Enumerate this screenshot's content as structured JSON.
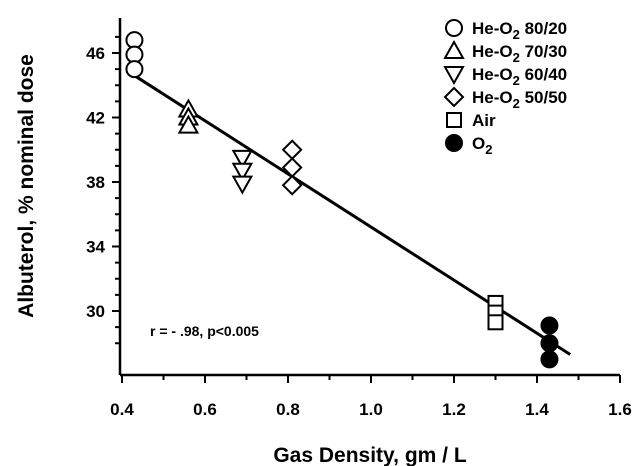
{
  "chart_data": {
    "type": "scatter",
    "xlabel": "Gas Density, gm / L",
    "ylabel": "Albuterol, % nominal dose",
    "xlim": [
      0.4,
      1.6
    ],
    "ylim": [
      27,
      48
    ],
    "xticks": [
      "0.4",
      "0.6",
      "0.8",
      "1.0",
      "1.2",
      "1.4",
      "1.6"
    ],
    "yticks": [
      "46",
      "42",
      "38",
      "34",
      "30"
    ],
    "grid": false,
    "legend_position": "top-right",
    "series": [
      {
        "name": "He-O2 80/20",
        "marker": "open-circle",
        "points": [
          [
            0.43,
            46.8
          ],
          [
            0.43,
            45.9
          ],
          [
            0.43,
            45.0
          ]
        ]
      },
      {
        "name": "He-O2 70/30",
        "marker": "open-triangle-up",
        "points": [
          [
            0.56,
            42.5
          ],
          [
            0.56,
            42.0
          ],
          [
            0.56,
            41.5
          ]
        ]
      },
      {
        "name": "He-O2 60/40",
        "marker": "open-triangle-down",
        "points": [
          [
            0.69,
            39.5
          ],
          [
            0.69,
            38.7
          ],
          [
            0.69,
            37.9
          ]
        ]
      },
      {
        "name": "He-O2 50/50",
        "marker": "open-diamond",
        "points": [
          [
            0.81,
            40.0
          ],
          [
            0.81,
            38.9
          ],
          [
            0.81,
            37.8
          ]
        ]
      },
      {
        "name": "Air",
        "marker": "open-square",
        "points": [
          [
            1.3,
            30.5
          ],
          [
            1.3,
            29.9
          ],
          [
            1.3,
            29.3
          ]
        ]
      },
      {
        "name": "O2",
        "marker": "filled-circle",
        "points": [
          [
            1.43,
            29.1
          ],
          [
            1.43,
            28.0
          ],
          [
            1.43,
            27.0
          ]
        ]
      }
    ],
    "fit_line": {
      "x": [
        0.43,
        1.48
      ],
      "y": [
        44.6,
        27.3
      ]
    },
    "annotation": "r = - .98, p<0.005"
  }
}
